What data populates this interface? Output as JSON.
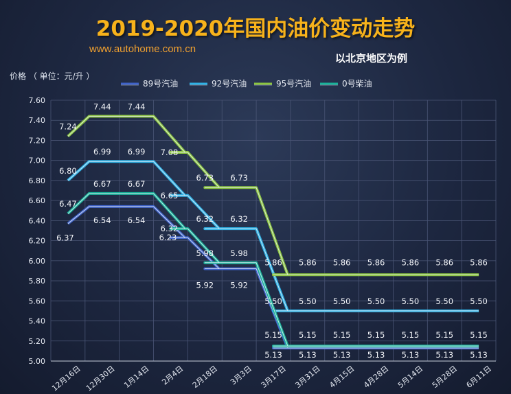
{
  "title": "2019-2020年国内油价变动走势",
  "url": "www.autohome.com.cn",
  "region": "以北京地区为例",
  "chart_data": {
    "type": "line",
    "title": "2019-2020年国内油价变动走势",
    "ylabel": "价格 （ 单位：元/升 ）",
    "xlabel": "",
    "ylim": [
      5.0,
      7.6
    ],
    "yticks": [
      "5.00",
      "5.20",
      "5.40",
      "5.60",
      "5.80",
      "6.00",
      "6.20",
      "6.40",
      "6.60",
      "6.80",
      "7.00",
      "7.20",
      "7.40",
      "7.60"
    ],
    "categories": [
      "12月16日",
      "12月30日",
      "1月14日",
      "2月4日",
      "2月18日",
      "3月3日",
      "3月17日",
      "3月31日",
      "4月15日",
      "4月28日",
      "5月14日",
      "5月28日",
      "6月11日"
    ],
    "series": [
      {
        "name": "89号汽油",
        "color": "#3f63c9",
        "values": [
          6.37,
          6.54,
          6.54,
          6.23,
          5.92,
          5.92,
          5.13,
          5.13,
          5.13,
          5.13,
          5.13,
          5.13,
          5.13
        ],
        "labels": [
          "6.37",
          "6.54",
          "6.54",
          "6.23",
          "5.92",
          "5.92",
          "5.13",
          "5.13",
          "5.13",
          "5.13",
          "5.13",
          "5.13",
          "5.13"
        ]
      },
      {
        "name": "92号汽油",
        "color": "#2fb2e6",
        "values": [
          6.8,
          6.99,
          6.99,
          6.65,
          6.32,
          6.32,
          5.5,
          5.5,
          5.5,
          5.5,
          5.5,
          5.5,
          5.5
        ],
        "labels": [
          "6.80",
          "6.99",
          "6.99",
          "6.65",
          "6.32",
          "6.32",
          "5.50",
          "5.50",
          "5.50",
          "5.50",
          "5.50",
          "5.50",
          "5.50"
        ]
      },
      {
        "name": "95号汽油",
        "color": "#8cc63f",
        "values": [
          7.24,
          7.44,
          7.44,
          7.08,
          6.73,
          6.73,
          5.86,
          5.86,
          5.86,
          5.86,
          5.86,
          5.86,
          5.86
        ],
        "labels": [
          "7.24",
          "7.44",
          "7.44",
          "7.08",
          "6.73",
          "6.73",
          "5.86",
          "5.86",
          "5.86",
          "5.86",
          "5.86",
          "5.86",
          "5.86"
        ]
      },
      {
        "name": "0号柴油",
        "color": "#19b39a",
        "values": [
          6.47,
          6.67,
          6.67,
          6.32,
          5.98,
          5.98,
          5.15,
          5.15,
          5.15,
          5.15,
          5.15,
          5.15,
          5.15
        ],
        "labels": [
          "6.47",
          "6.67",
          "6.67",
          "6.32",
          "5.98",
          "5.98",
          "5.15",
          "5.15",
          "5.15",
          "5.15",
          "5.15",
          "5.15",
          "5.15"
        ]
      }
    ]
  }
}
